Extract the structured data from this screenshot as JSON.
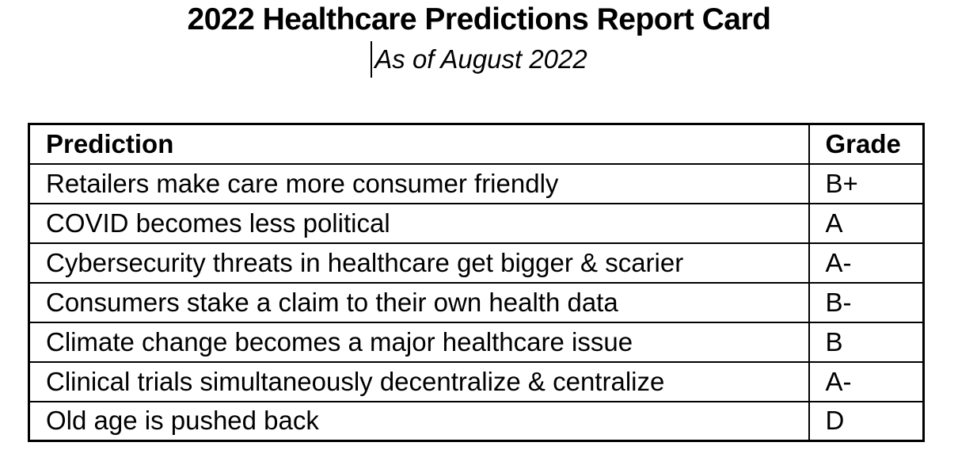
{
  "doc": {
    "title": "2022 Healthcare Predictions Report Card",
    "subtitle": "As of August 2022"
  },
  "table": {
    "headers": [
      "Prediction",
      "Grade"
    ],
    "rows": [
      {
        "prediction": "Retailers make care more consumer friendly",
        "grade": "B+"
      },
      {
        "prediction": "COVID becomes less political",
        "grade": "A"
      },
      {
        "prediction": "Cybersecurity threats in healthcare get bigger & scarier",
        "grade": "A-"
      },
      {
        "prediction": "Consumers stake a claim to their own health data",
        "grade": "B-"
      },
      {
        "prediction": "Climate change becomes a major healthcare issue",
        "grade": "B"
      },
      {
        "prediction": "Clinical trials simultaneously decentralize & centralize",
        "grade": "A-"
      },
      {
        "prediction": "Old age is pushed back",
        "grade": "D"
      }
    ]
  },
  "colors": {
    "text": "#000000",
    "background": "#ffffff",
    "border": "#000000"
  }
}
